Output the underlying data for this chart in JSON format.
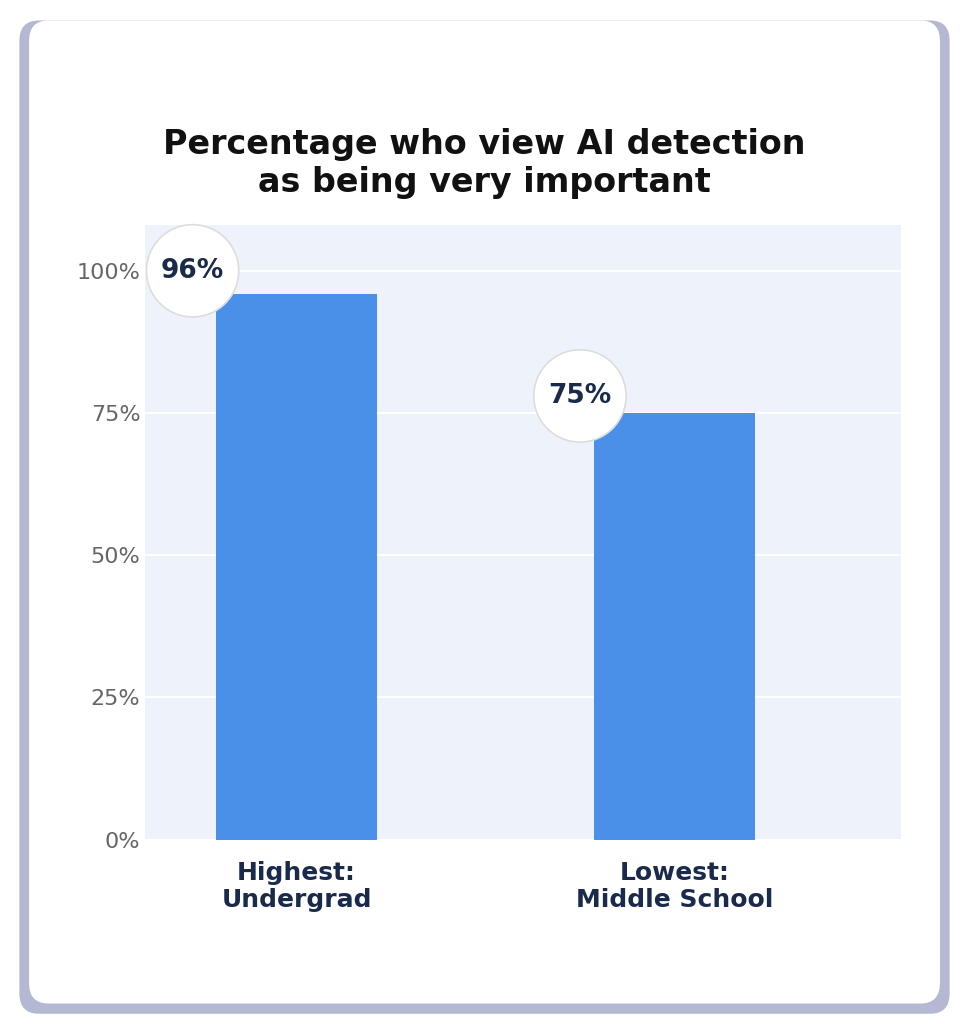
{
  "title": "Percentage who view AI detection\nas being very important",
  "categories": [
    "Highest:\nUndergrad",
    "Lowest:\nMiddle School"
  ],
  "values": [
    96,
    75
  ],
  "labels": [
    "96%",
    "75%"
  ],
  "bar_color": "#4a90e8",
  "label_color": "#1a2a4a",
  "title_color": "#111111",
  "xlabel_color": "#1a2a4a",
  "background_color": "#ffffff",
  "plot_bg_color": "#eef2fb",
  "card_border_color": "#2d3580",
  "yticks": [
    0,
    25,
    50,
    75,
    100
  ],
  "ytick_labels": [
    "0%",
    "25%",
    "50%",
    "75%",
    "100%"
  ],
  "ylim": [
    0,
    108
  ],
  "title_fontsize": 24,
  "label_fontsize": 19,
  "tick_fontsize": 16,
  "xlabel_fontsize": 18,
  "bar_positions": [
    1,
    3
  ],
  "bar_width": 0.85,
  "xlim": [
    0.2,
    4.2
  ]
}
